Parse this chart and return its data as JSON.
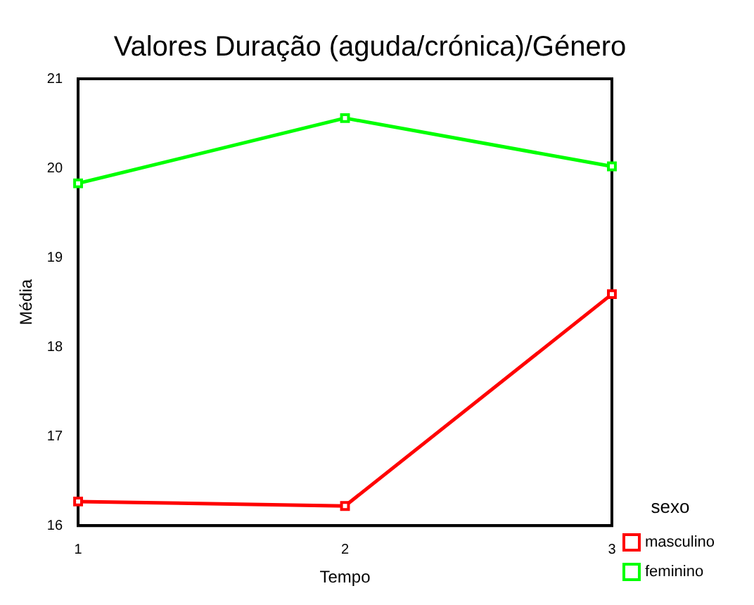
{
  "chart_data": {
    "type": "line",
    "title": "Valores Duração (aguda/crónica)/Género",
    "xlabel": "Tempo",
    "ylabel": "Média",
    "legend_title": "sexo",
    "x": [
      1,
      2,
      3
    ],
    "series": [
      {
        "name": "masculino",
        "color": "#ff0000",
        "values": [
          16.27,
          16.22,
          18.59
        ]
      },
      {
        "name": "feminino",
        "color": "#00ff00",
        "values": [
          19.83,
          20.56,
          20.02
        ]
      }
    ],
    "xlim": [
      1,
      3
    ],
    "xticks": [
      1,
      2,
      3
    ],
    "ylim": [
      16,
      21
    ],
    "yticks": [
      16,
      17,
      18,
      19,
      20,
      21
    ],
    "grid": false,
    "legend": "bottom right",
    "marker": "square",
    "line_style": "solid"
  }
}
